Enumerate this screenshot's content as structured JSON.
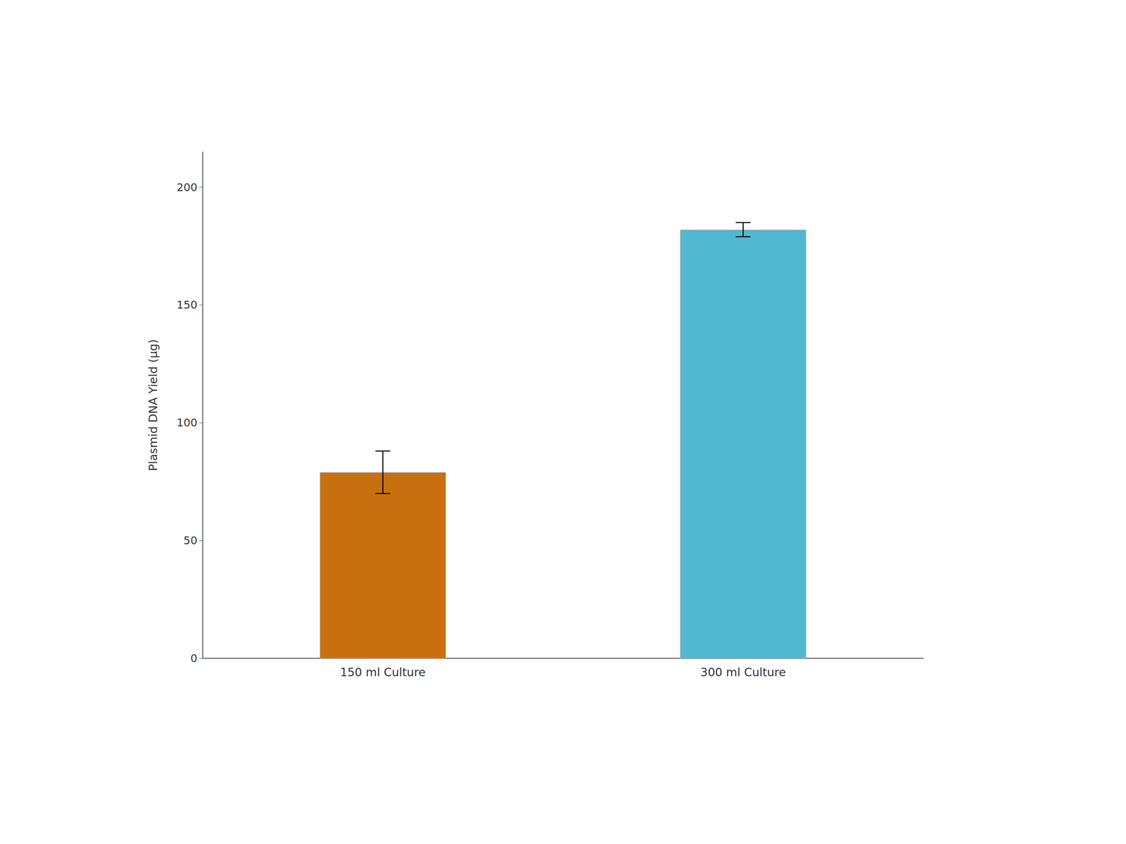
{
  "chart_data": {
    "type": "bar",
    "categories": [
      "150 ml Culture",
      "300 ml Culture"
    ],
    "values": [
      79,
      182
    ],
    "errors": [
      9,
      3
    ],
    "colors": [
      "#C87010",
      "#52B8D0"
    ],
    "ylabel": "Plasmid DNA Yield (µg)",
    "ylim": [
      0,
      215
    ],
    "yticks": [
      0,
      50,
      100,
      150,
      200
    ],
    "grid": false
  }
}
